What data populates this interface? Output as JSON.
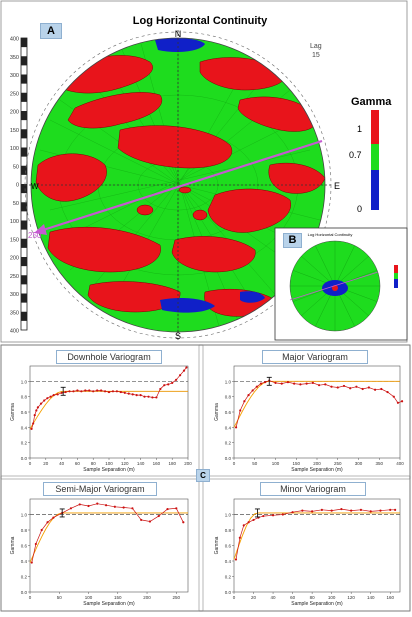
{
  "panel_a": {
    "tag": "A",
    "title": "Log Horizontal Continuity",
    "lag_label": "Lag",
    "lag_value": "15",
    "compass": {
      "n": "N",
      "s": "S",
      "e": "E",
      "w": "W"
    },
    "direction_label": "250",
    "scale_ticks": [
      "400",
      "350",
      "300",
      "250",
      "200",
      "150",
      "100",
      "50",
      "0",
      "50",
      "100",
      "150",
      "200",
      "250",
      "300",
      "350",
      "400"
    ],
    "legend": {
      "title": "Gamma",
      "ticks": [
        "1",
        "0.7",
        "0"
      ]
    },
    "colors": {
      "high": "#e8141b",
      "mid": "#1edc1e",
      "low": "#1020c8",
      "arrow": "#c45ad0"
    }
  },
  "panel_b": {
    "tag": "B",
    "title": "Log Horizontal Continuity"
  },
  "panel_c": {
    "tag": "C"
  },
  "chart_data": [
    {
      "type": "line",
      "title": "Downhole Variogram",
      "xlabel": "Sample Separation (m)",
      "ylabel": "Gamma",
      "xlim": [
        0,
        200
      ],
      "ylim": [
        0,
        1.2
      ],
      "x_ticks": [
        "0",
        "20",
        "40",
        "60",
        "80",
        "100",
        "120",
        "140",
        "160",
        "180",
        "200"
      ],
      "y_ticks": [
        "0.0",
        "0.2",
        "0.4",
        "0.6",
        "0.8",
        "1.0"
      ],
      "sill": 1.0,
      "model_sill": 0.87,
      "range": 42,
      "series": [
        {
          "x": [
            2,
            4,
            6,
            8,
            10,
            14,
            18,
            22,
            26,
            30,
            35,
            40,
            45,
            50,
            55,
            60,
            65,
            70,
            75,
            80,
            85,
            90,
            95,
            100,
            105,
            110,
            115,
            120,
            125,
            130,
            135,
            140,
            145,
            150,
            155,
            160,
            165,
            170,
            175,
            180,
            185,
            190,
            195,
            198
          ],
          "values": [
            0.38,
            0.45,
            0.56,
            0.62,
            0.66,
            0.71,
            0.75,
            0.78,
            0.8,
            0.82,
            0.83,
            0.85,
            0.86,
            0.87,
            0.87,
            0.88,
            0.87,
            0.88,
            0.88,
            0.87,
            0.88,
            0.88,
            0.87,
            0.86,
            0.87,
            0.87,
            0.86,
            0.85,
            0.84,
            0.83,
            0.82,
            0.82,
            0.8,
            0.8,
            0.79,
            0.79,
            0.9,
            0.95,
            0.96,
            0.98,
            1.02,
            1.08,
            1.14,
            1.18
          ]
        }
      ]
    },
    {
      "type": "line",
      "title": "Major Variogram",
      "xlabel": "Sample Separation (m)",
      "ylabel": "Gamma",
      "xlim": [
        0,
        400
      ],
      "ylim": [
        0,
        1.2
      ],
      "x_ticks": [
        "0",
        "50",
        "100",
        "150",
        "200",
        "250",
        "300",
        "350",
        "400"
      ],
      "y_ticks": [
        "0.0",
        "0.2",
        "0.4",
        "0.6",
        "0.8",
        "1.0"
      ],
      "sill": 1.0,
      "model_sill": 1.0,
      "range": 85,
      "series": [
        {
          "x": [
            5,
            15,
            25,
            35,
            45,
            55,
            65,
            75,
            85,
            100,
            115,
            130,
            145,
            160,
            175,
            190,
            205,
            220,
            235,
            250,
            265,
            280,
            295,
            310,
            325,
            340,
            355,
            370,
            385,
            395,
            405
          ],
          "values": [
            0.4,
            0.62,
            0.74,
            0.82,
            0.88,
            0.93,
            0.97,
            0.99,
            1.01,
            0.98,
            0.97,
            0.99,
            0.97,
            0.96,
            0.97,
            0.98,
            0.95,
            0.96,
            0.93,
            0.92,
            0.94,
            0.91,
            0.93,
            0.9,
            0.92,
            0.89,
            0.9,
            0.86,
            0.8,
            0.72,
            0.74
          ]
        }
      ]
    },
    {
      "type": "line",
      "title": "Semi-Major Variogram",
      "xlabel": "Sample Separation (m)",
      "ylabel": "Gamma",
      "xlim": [
        0,
        270
      ],
      "ylim": [
        0,
        1.2
      ],
      "x_ticks": [
        "0",
        "50",
        "100",
        "150",
        "200",
        "250"
      ],
      "y_ticks": [
        "0.0",
        "0.2",
        "0.4",
        "0.6",
        "0.8",
        "1.0"
      ],
      "sill": 1.0,
      "model_sill": 1.02,
      "range": 55,
      "series": [
        {
          "x": [
            3,
            10,
            20,
            30,
            40,
            55,
            70,
            85,
            100,
            115,
            130,
            145,
            160,
            175,
            190,
            205,
            220,
            235,
            250,
            262
          ],
          "values": [
            0.38,
            0.62,
            0.8,
            0.9,
            0.96,
            1.02,
            1.08,
            1.13,
            1.11,
            1.14,
            1.12,
            1.1,
            1.09,
            1.08,
            0.93,
            0.91,
            0.98,
            1.07,
            1.08,
            0.9
          ]
        }
      ]
    },
    {
      "type": "line",
      "title": "Minor Variogram",
      "xlabel": "Sample Separation (m)",
      "ylabel": "Gamma",
      "xlim": [
        0,
        170
      ],
      "ylim": [
        0,
        1.2
      ],
      "x_ticks": [
        "0",
        "20",
        "40",
        "60",
        "80",
        "100",
        "120",
        "140",
        "160"
      ],
      "y_ticks": [
        "0.0",
        "0.2",
        "0.4",
        "0.6",
        "0.8",
        "1.0"
      ],
      "sill": 1.0,
      "model_sill": 1.02,
      "range": 24,
      "series": [
        {
          "x": [
            2,
            6,
            10,
            15,
            20,
            25,
            30,
            40,
            50,
            60,
            70,
            80,
            90,
            100,
            110,
            120,
            130,
            140,
            150,
            160,
            165
          ],
          "values": [
            0.42,
            0.7,
            0.86,
            0.9,
            0.93,
            0.96,
            0.98,
            0.99,
            1.0,
            1.03,
            1.05,
            1.04,
            1.06,
            1.05,
            1.07,
            1.05,
            1.06,
            1.04,
            1.05,
            1.06,
            1.06
          ]
        }
      ]
    }
  ]
}
